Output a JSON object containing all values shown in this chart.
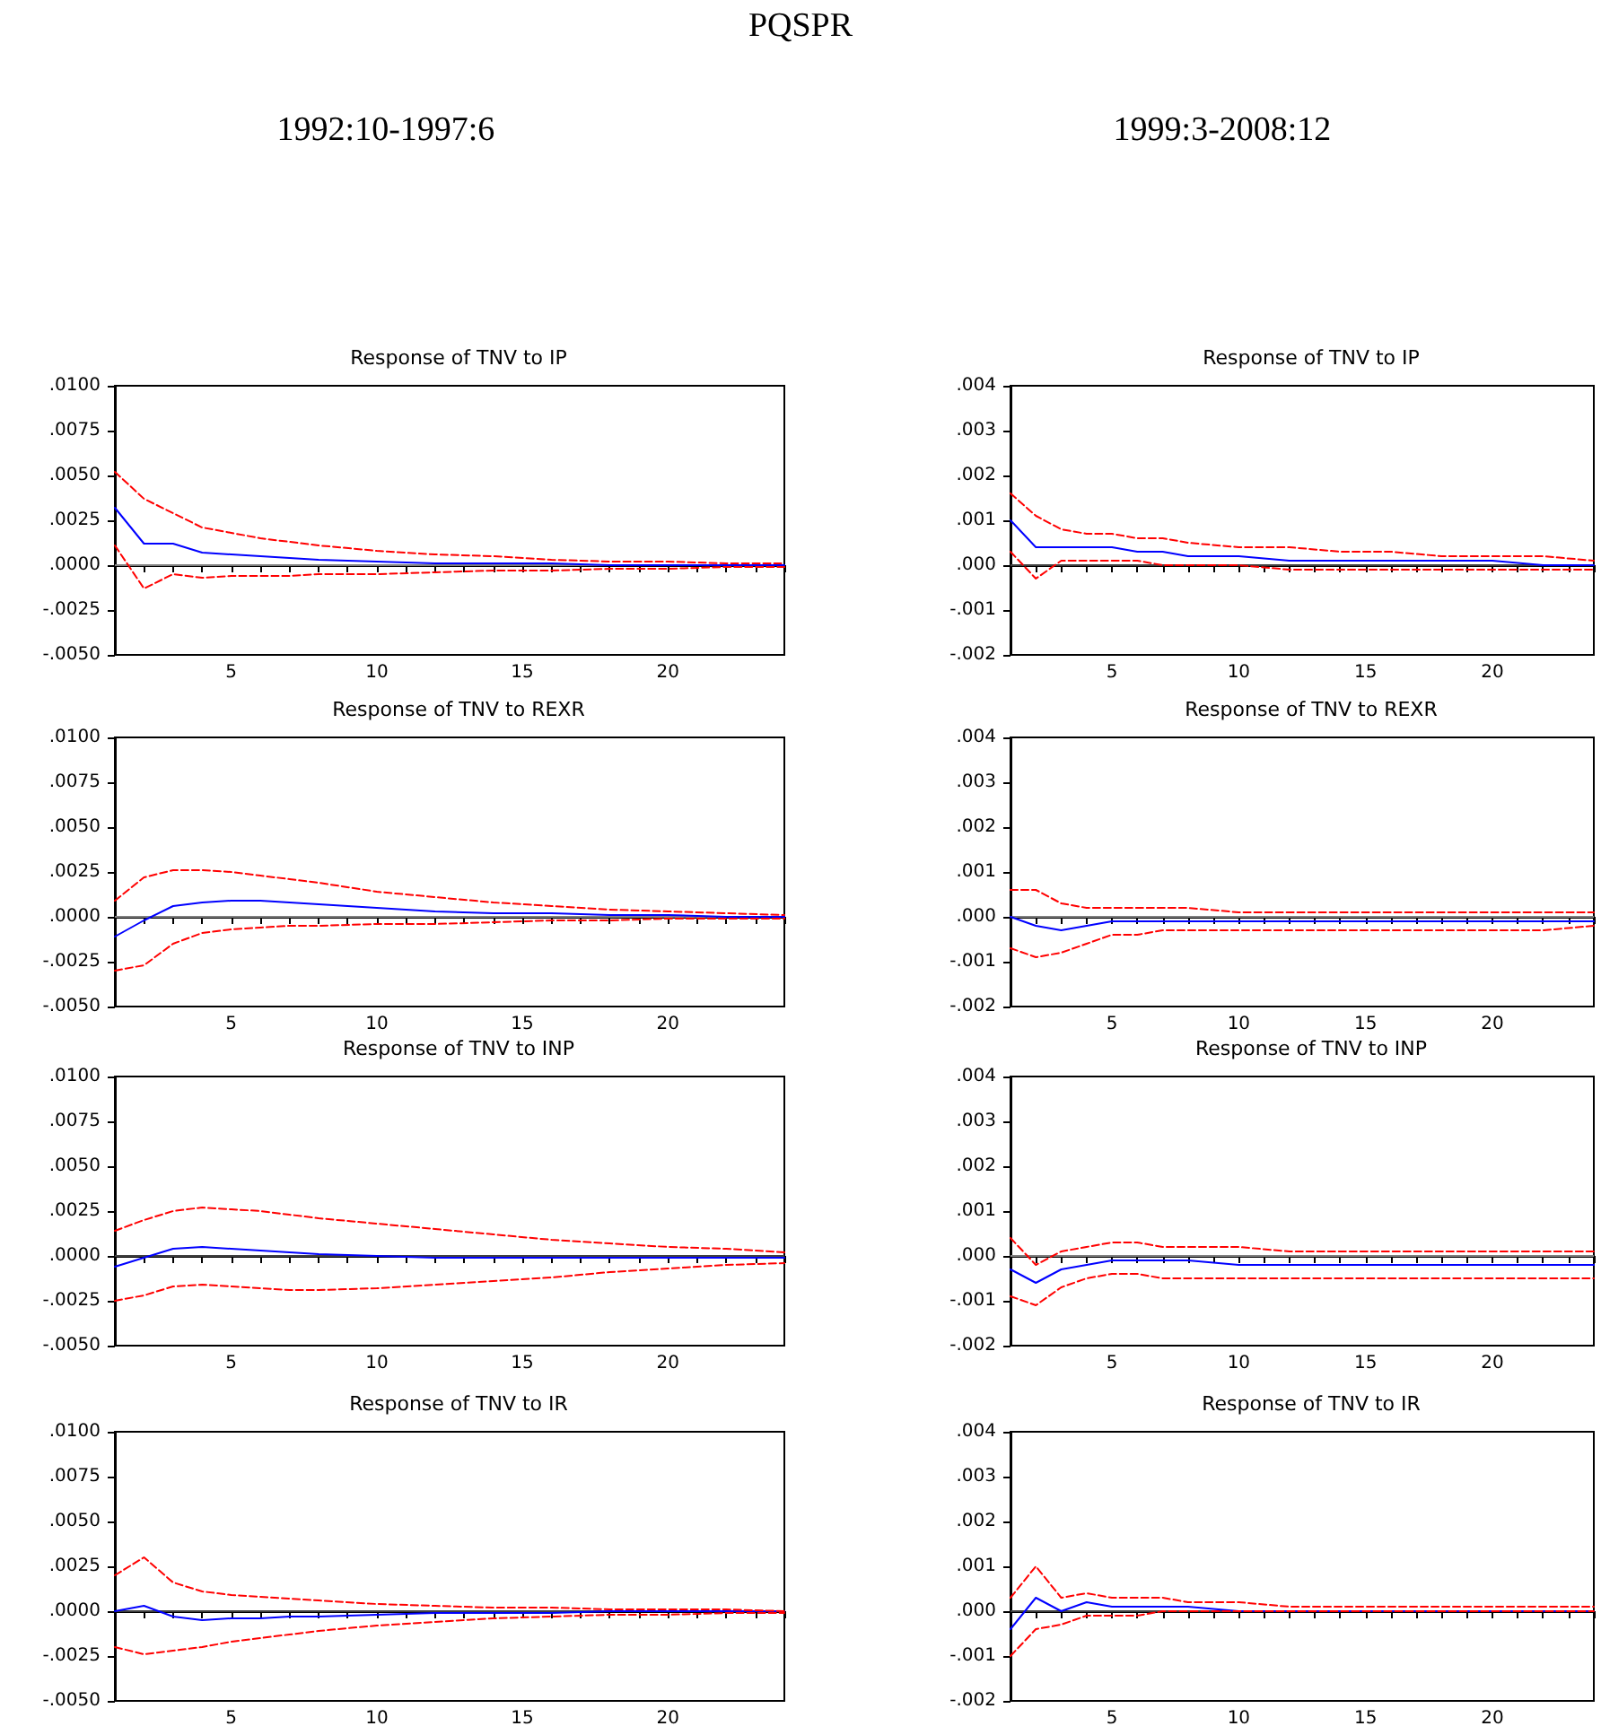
{
  "chart_data": [
    {
      "type": "other",
      "title": "PQSPR",
      "annotations": [
        "1992:10-1997:6",
        "1999:3-2008:12"
      ]
    },
    {
      "type": "line",
      "title": "Response of TNV to IP",
      "x": [
        1,
        2,
        3,
        4,
        5,
        6,
        7,
        8,
        10,
        12,
        14,
        16,
        18,
        20,
        22,
        24
      ],
      "xlim": [
        1,
        24
      ],
      "xticks": [
        {
          "value": 1,
          "label": null
        },
        {
          "value": 2,
          "label": null
        },
        {
          "value": 3,
          "label": null
        },
        {
          "value": 4,
          "label": null
        },
        5,
        {
          "value": 6,
          "label": null
        },
        {
          "value": 7,
          "label": null
        },
        {
          "value": 8,
          "label": null
        },
        {
          "value": 9,
          "label": null
        },
        10,
        {
          "value": 11,
          "label": null
        },
        {
          "value": 12,
          "label": null
        },
        {
          "value": 13,
          "label": null
        },
        {
          "value": 14,
          "label": null
        },
        15,
        {
          "value": 16,
          "label": null
        },
        {
          "value": 17,
          "label": null
        },
        {
          "value": 18,
          "label": null
        },
        {
          "value": 19,
          "label": null
        },
        20,
        {
          "value": 21,
          "label": null
        },
        {
          "value": 22,
          "label": null
        },
        {
          "value": 23,
          "label": null
        },
        {
          "value": 24,
          "label": null
        }
      ],
      "ylim": [
        -0.005,
        0.01
      ],
      "yticks": [
        {
          "value": -0.005,
          "label": "-.0050"
        },
        {
          "value": -0.0025,
          "label": "-.0025"
        },
        {
          "value": 0,
          "label": ".0000"
        },
        {
          "value": 0.0025,
          "label": ".0025"
        },
        {
          "value": 0.005,
          "label": ".0050"
        },
        {
          "value": 0.0075,
          "label": ".0075"
        },
        {
          "value": 0.01,
          "label": ".0100"
        }
      ],
      "grid": false,
      "marker": "none",
      "ref_lines": [
        {
          "axis": "y",
          "value": 0,
          "color": "#808080"
        }
      ],
      "series": [
        {
          "color": "#0000ff",
          "line_style": "solid",
          "values": [
            0.0032,
            0.0012,
            0.0012,
            0.0007,
            0.0006,
            0.0005,
            0.0004,
            0.0003,
            0.0002,
            0.0001,
            0.0001,
            0.0001,
            0,
            0,
            0,
            0
          ]
        },
        {
          "color": "#ff0000",
          "line_style": "dashed",
          "values": [
            0.0052,
            0.0037,
            0.0029,
            0.0021,
            0.0018,
            0.0015,
            0.0013,
            0.0011,
            0.0008,
            0.0006,
            0.0005,
            0.0003,
            0.0002,
            0.0002,
            0.0001,
            0.0001
          ]
        },
        {
          "color": "#ff0000",
          "line_style": "dashed",
          "values": [
            0.0011,
            -0.0013,
            -0.0005,
            -0.0007,
            -0.0006,
            -0.0006,
            -0.0006,
            -0.0005,
            -0.0005,
            -0.0004,
            -0.0003,
            -0.0003,
            -0.0002,
            -0.0002,
            -0.0001,
            -0.0001
          ]
        }
      ]
    },
    {
      "type": "line",
      "title": "Response of TNV to IP",
      "x": [
        1,
        2,
        3,
        4,
        5,
        6,
        7,
        8,
        10,
        12,
        14,
        16,
        18,
        20,
        22,
        24
      ],
      "xlim": [
        1,
        24
      ],
      "xticks": [
        {
          "value": 1,
          "label": null
        },
        {
          "value": 2,
          "label": null
        },
        {
          "value": 3,
          "label": null
        },
        {
          "value": 4,
          "label": null
        },
        5,
        {
          "value": 6,
          "label": null
        },
        {
          "value": 7,
          "label": null
        },
        {
          "value": 8,
          "label": null
        },
        {
          "value": 9,
          "label": null
        },
        10,
        {
          "value": 11,
          "label": null
        },
        {
          "value": 12,
          "label": null
        },
        {
          "value": 13,
          "label": null
        },
        {
          "value": 14,
          "label": null
        },
        15,
        {
          "value": 16,
          "label": null
        },
        {
          "value": 17,
          "label": null
        },
        {
          "value": 18,
          "label": null
        },
        {
          "value": 19,
          "label": null
        },
        20,
        {
          "value": 21,
          "label": null
        },
        {
          "value": 22,
          "label": null
        },
        {
          "value": 23,
          "label": null
        },
        {
          "value": 24,
          "label": null
        }
      ],
      "ylim": [
        -0.002,
        0.004
      ],
      "yticks": [
        {
          "value": -0.002,
          "label": "-.002"
        },
        {
          "value": -0.001,
          "label": "-.001"
        },
        {
          "value": 0,
          "label": ".000"
        },
        {
          "value": 0.001,
          "label": ".001"
        },
        {
          "value": 0.002,
          "label": ".002"
        },
        {
          "value": 0.003,
          "label": ".003"
        },
        {
          "value": 0.004,
          "label": ".004"
        }
      ],
      "grid": false,
      "marker": "none",
      "ref_lines": [
        {
          "axis": "y",
          "value": 0,
          "color": "#404040"
        }
      ],
      "series": [
        {
          "color": "#0000ff",
          "line_style": "solid",
          "values": [
            0.001,
            0.0004,
            0.0004,
            0.0004,
            0.0004,
            0.0003,
            0.0003,
            0.0002,
            0.0002,
            0.0001,
            0.0001,
            0.0001,
            0.0001,
            0.0001,
            0,
            0
          ]
        },
        {
          "color": "#ff0000",
          "line_style": "dashed",
          "values": [
            0.0016,
            0.0011,
            0.0008,
            0.0007,
            0.0007,
            0.0006,
            0.0006,
            0.0005,
            0.0004,
            0.0004,
            0.0003,
            0.0003,
            0.0002,
            0.0002,
            0.0002,
            0.0001
          ]
        },
        {
          "color": "#ff0000",
          "line_style": "dashed",
          "values": [
            0.0003,
            -0.0003,
            0.0001,
            0.0001,
            0.0001,
            0.0001,
            0,
            0,
            0,
            -0.0001,
            -0.0001,
            -0.0001,
            -0.0001,
            -0.0001,
            -0.0001,
            -0.0001
          ]
        }
      ]
    },
    {
      "type": "line",
      "title": "Response of TNV to REXR",
      "x": [
        1,
        2,
        3,
        4,
        5,
        6,
        7,
        8,
        10,
        12,
        14,
        16,
        18,
        20,
        22,
        24
      ],
      "xlim": [
        1,
        24
      ],
      "xticks": [
        {
          "value": 1,
          "label": null
        },
        {
          "value": 2,
          "label": null
        },
        {
          "value": 3,
          "label": null
        },
        {
          "value": 4,
          "label": null
        },
        5,
        {
          "value": 6,
          "label": null
        },
        {
          "value": 7,
          "label": null
        },
        {
          "value": 8,
          "label": null
        },
        {
          "value": 9,
          "label": null
        },
        10,
        {
          "value": 11,
          "label": null
        },
        {
          "value": 12,
          "label": null
        },
        {
          "value": 13,
          "label": null
        },
        {
          "value": 14,
          "label": null
        },
        15,
        {
          "value": 16,
          "label": null
        },
        {
          "value": 17,
          "label": null
        },
        {
          "value": 18,
          "label": null
        },
        {
          "value": 19,
          "label": null
        },
        20,
        {
          "value": 21,
          "label": null
        },
        {
          "value": 22,
          "label": null
        },
        {
          "value": 23,
          "label": null
        },
        {
          "value": 24,
          "label": null
        }
      ],
      "ylim": [
        -0.005,
        0.01
      ],
      "yticks": [
        {
          "value": -0.005,
          "label": "-.0050"
        },
        {
          "value": -0.0025,
          "label": "-.0025"
        },
        {
          "value": 0,
          "label": ".0000"
        },
        {
          "value": 0.0025,
          "label": ".0025"
        },
        {
          "value": 0.005,
          "label": ".0050"
        },
        {
          "value": 0.0075,
          "label": ".0075"
        },
        {
          "value": 0.01,
          "label": ".0100"
        }
      ],
      "grid": false,
      "marker": "none",
      "ref_lines": [
        {
          "axis": "y",
          "value": 0,
          "color": "#808080"
        }
      ],
      "series": [
        {
          "color": "#0000ff",
          "line_style": "solid",
          "values": [
            -0.0011,
            -0.0002,
            0.0006,
            0.0008,
            0.0009,
            0.0009,
            0.0008,
            0.0007,
            0.0005,
            0.0003,
            0.0002,
            0.0002,
            0.0001,
            0.0001,
            0,
            0
          ]
        },
        {
          "color": "#ff0000",
          "line_style": "dashed",
          "values": [
            0.0009,
            0.0022,
            0.0026,
            0.0026,
            0.0025,
            0.0023,
            0.0021,
            0.0019,
            0.0014,
            0.0011,
            0.0008,
            0.0006,
            0.0004,
            0.0003,
            0.0002,
            0.0001
          ]
        },
        {
          "color": "#ff0000",
          "line_style": "dashed",
          "values": [
            -0.003,
            -0.0027,
            -0.0015,
            -0.0009,
            -0.0007,
            -0.0006,
            -0.0005,
            -0.0005,
            -0.0004,
            -0.0004,
            -0.0003,
            -0.0002,
            -0.0002,
            -0.0001,
            -0.0001,
            -0.0001
          ]
        }
      ]
    },
    {
      "type": "line",
      "title": "Response of TNV to REXR",
      "x": [
        1,
        2,
        3,
        4,
        5,
        6,
        7,
        8,
        10,
        12,
        14,
        16,
        18,
        20,
        22,
        24
      ],
      "xlim": [
        1,
        24
      ],
      "xticks": [
        {
          "value": 1,
          "label": null
        },
        {
          "value": 2,
          "label": null
        },
        {
          "value": 3,
          "label": null
        },
        {
          "value": 4,
          "label": null
        },
        5,
        {
          "value": 6,
          "label": null
        },
        {
          "value": 7,
          "label": null
        },
        {
          "value": 8,
          "label": null
        },
        {
          "value": 9,
          "label": null
        },
        10,
        {
          "value": 11,
          "label": null
        },
        {
          "value": 12,
          "label": null
        },
        {
          "value": 13,
          "label": null
        },
        {
          "value": 14,
          "label": null
        },
        15,
        {
          "value": 16,
          "label": null
        },
        {
          "value": 17,
          "label": null
        },
        {
          "value": 18,
          "label": null
        },
        {
          "value": 19,
          "label": null
        },
        20,
        {
          "value": 21,
          "label": null
        },
        {
          "value": 22,
          "label": null
        },
        {
          "value": 23,
          "label": null
        },
        {
          "value": 24,
          "label": null
        }
      ],
      "ylim": [
        -0.002,
        0.004
      ],
      "yticks": [
        {
          "value": -0.002,
          "label": "-.002"
        },
        {
          "value": -0.001,
          "label": "-.001"
        },
        {
          "value": 0,
          "label": ".000"
        },
        {
          "value": 0.001,
          "label": ".001"
        },
        {
          "value": 0.002,
          "label": ".002"
        },
        {
          "value": 0.003,
          "label": ".003"
        },
        {
          "value": 0.004,
          "label": ".004"
        }
      ],
      "grid": false,
      "marker": "none",
      "ref_lines": [
        {
          "axis": "y",
          "value": 0,
          "color": "#808080"
        }
      ],
      "series": [
        {
          "color": "#0000ff",
          "line_style": "solid",
          "values": [
            0,
            -0.0002,
            -0.0003,
            -0.0002,
            -0.0001,
            -0.0001,
            -0.0001,
            -0.0001,
            -0.0001,
            -0.0001,
            -0.0001,
            -0.0001,
            -0.0001,
            -0.0001,
            -0.0001,
            -0.0001
          ]
        },
        {
          "color": "#ff0000",
          "line_style": "dashed",
          "values": [
            0.0006,
            0.0006,
            0.0003,
            0.0002,
            0.0002,
            0.0002,
            0.0002,
            0.0002,
            0.0001,
            0.0001,
            0.0001,
            0.0001,
            0.0001,
            0.0001,
            0.0001,
            0.0001
          ]
        },
        {
          "color": "#ff0000",
          "line_style": "dashed",
          "values": [
            -0.0007,
            -0.0009,
            -0.0008,
            -0.0006,
            -0.0004,
            -0.0004,
            -0.0003,
            -0.0003,
            -0.0003,
            -0.0003,
            -0.0003,
            -0.0003,
            -0.0003,
            -0.0003,
            -0.0003,
            -0.0002
          ]
        }
      ]
    },
    {
      "type": "line",
      "title": "Response of TNV to INP",
      "x": [
        1,
        2,
        3,
        4,
        5,
        6,
        7,
        8,
        10,
        12,
        14,
        16,
        18,
        20,
        22,
        24
      ],
      "xlim": [
        1,
        24
      ],
      "xticks": [
        {
          "value": 1,
          "label": null
        },
        {
          "value": 2,
          "label": null
        },
        {
          "value": 3,
          "label": null
        },
        {
          "value": 4,
          "label": null
        },
        5,
        {
          "value": 6,
          "label": null
        },
        {
          "value": 7,
          "label": null
        },
        {
          "value": 8,
          "label": null
        },
        {
          "value": 9,
          "label": null
        },
        10,
        {
          "value": 11,
          "label": null
        },
        {
          "value": 12,
          "label": null
        },
        {
          "value": 13,
          "label": null
        },
        {
          "value": 14,
          "label": null
        },
        15,
        {
          "value": 16,
          "label": null
        },
        {
          "value": 17,
          "label": null
        },
        {
          "value": 18,
          "label": null
        },
        {
          "value": 19,
          "label": null
        },
        20,
        {
          "value": 21,
          "label": null
        },
        {
          "value": 22,
          "label": null
        },
        {
          "value": 23,
          "label": null
        },
        {
          "value": 24,
          "label": null
        }
      ],
      "ylim": [
        -0.005,
        0.01
      ],
      "yticks": [
        {
          "value": -0.005,
          "label": "-.0050"
        },
        {
          "value": -0.0025,
          "label": "-.0025"
        },
        {
          "value": 0,
          "label": ".0000"
        },
        {
          "value": 0.0025,
          "label": ".0025"
        },
        {
          "value": 0.005,
          "label": ".0050"
        },
        {
          "value": 0.0075,
          "label": ".0075"
        },
        {
          "value": 0.01,
          "label": ".0100"
        }
      ],
      "grid": false,
      "marker": "none",
      "ref_lines": [
        {
          "axis": "y",
          "value": 0,
          "color": "#404040"
        }
      ],
      "series": [
        {
          "color": "#0000ff",
          "line_style": "solid",
          "values": [
            -0.0006,
            -0.0001,
            0.0004,
            0.0005,
            0.0004,
            0.0003,
            0.0002,
            0.0001,
            0,
            -0.0001,
            -0.0001,
            -0.0001,
            -0.0001,
            -0.0001,
            -0.0001,
            -0.0001
          ]
        },
        {
          "color": "#ff0000",
          "line_style": "dashed",
          "values": [
            0.0014,
            0.002,
            0.0025,
            0.0027,
            0.0026,
            0.0025,
            0.0023,
            0.0021,
            0.0018,
            0.0015,
            0.0012,
            0.0009,
            0.0007,
            0.0005,
            0.0004,
            0.0002
          ]
        },
        {
          "color": "#ff0000",
          "line_style": "dashed",
          "values": [
            -0.0025,
            -0.0022,
            -0.0017,
            -0.0016,
            -0.0017,
            -0.0018,
            -0.0019,
            -0.0019,
            -0.0018,
            -0.0016,
            -0.0014,
            -0.0012,
            -0.0009,
            -0.0007,
            -0.0005,
            -0.0004
          ]
        }
      ]
    },
    {
      "type": "line",
      "title": "Response of TNV to INP",
      "x": [
        1,
        2,
        3,
        4,
        5,
        6,
        7,
        8,
        10,
        12,
        14,
        16,
        18,
        20,
        22,
        24
      ],
      "xlim": [
        1,
        24
      ],
      "xticks": [
        {
          "value": 1,
          "label": null
        },
        {
          "value": 2,
          "label": null
        },
        {
          "value": 3,
          "label": null
        },
        {
          "value": 4,
          "label": null
        },
        5,
        {
          "value": 6,
          "label": null
        },
        {
          "value": 7,
          "label": null
        },
        {
          "value": 8,
          "label": null
        },
        {
          "value": 9,
          "label": null
        },
        10,
        {
          "value": 11,
          "label": null
        },
        {
          "value": 12,
          "label": null
        },
        {
          "value": 13,
          "label": null
        },
        {
          "value": 14,
          "label": null
        },
        15,
        {
          "value": 16,
          "label": null
        },
        {
          "value": 17,
          "label": null
        },
        {
          "value": 18,
          "label": null
        },
        {
          "value": 19,
          "label": null
        },
        20,
        {
          "value": 21,
          "label": null
        },
        {
          "value": 22,
          "label": null
        },
        {
          "value": 23,
          "label": null
        },
        {
          "value": 24,
          "label": null
        }
      ],
      "ylim": [
        -0.002,
        0.004
      ],
      "yticks": [
        {
          "value": -0.002,
          "label": "-.002"
        },
        {
          "value": -0.001,
          "label": "-.001"
        },
        {
          "value": 0,
          "label": ".000"
        },
        {
          "value": 0.001,
          "label": ".001"
        },
        {
          "value": 0.002,
          "label": ".002"
        },
        {
          "value": 0.003,
          "label": ".003"
        },
        {
          "value": 0.004,
          "label": ".004"
        }
      ],
      "grid": false,
      "marker": "none",
      "ref_lines": [
        {
          "axis": "y",
          "value": 0,
          "color": "#808080"
        }
      ],
      "series": [
        {
          "color": "#0000ff",
          "line_style": "solid",
          "values": [
            -0.0003,
            -0.0006,
            -0.0003,
            -0.0002,
            -0.0001,
            -0.0001,
            -0.0001,
            -0.0001,
            -0.0002,
            -0.0002,
            -0.0002,
            -0.0002,
            -0.0002,
            -0.0002,
            -0.0002,
            -0.0002
          ]
        },
        {
          "color": "#ff0000",
          "line_style": "dashed",
          "values": [
            0.0004,
            -0.0002,
            0.0001,
            0.0002,
            0.0003,
            0.0003,
            0.0002,
            0.0002,
            0.0002,
            0.0001,
            0.0001,
            0.0001,
            0.0001,
            0.0001,
            0.0001,
            0.0001
          ]
        },
        {
          "color": "#ff0000",
          "line_style": "dashed",
          "values": [
            -0.0009,
            -0.0011,
            -0.0007,
            -0.0005,
            -0.0004,
            -0.0004,
            -0.0005,
            -0.0005,
            -0.0005,
            -0.0005,
            -0.0005,
            -0.0005,
            -0.0005,
            -0.0005,
            -0.0005,
            -0.0005
          ]
        }
      ]
    },
    {
      "type": "line",
      "title": "Response of TNV to IR",
      "x": [
        1,
        2,
        3,
        4,
        5,
        6,
        7,
        8,
        10,
        12,
        14,
        16,
        18,
        20,
        22,
        24
      ],
      "xlim": [
        1,
        24
      ],
      "xticks": [
        {
          "value": 1,
          "label": null
        },
        {
          "value": 2,
          "label": null
        },
        {
          "value": 3,
          "label": null
        },
        {
          "value": 4,
          "label": null
        },
        5,
        {
          "value": 6,
          "label": null
        },
        {
          "value": 7,
          "label": null
        },
        {
          "value": 8,
          "label": null
        },
        {
          "value": 9,
          "label": null
        },
        10,
        {
          "value": 11,
          "label": null
        },
        {
          "value": 12,
          "label": null
        },
        {
          "value": 13,
          "label": null
        },
        {
          "value": 14,
          "label": null
        },
        15,
        {
          "value": 16,
          "label": null
        },
        {
          "value": 17,
          "label": null
        },
        {
          "value": 18,
          "label": null
        },
        {
          "value": 19,
          "label": null
        },
        20,
        {
          "value": 21,
          "label": null
        },
        {
          "value": 22,
          "label": null
        },
        {
          "value": 23,
          "label": null
        },
        {
          "value": 24,
          "label": null
        }
      ],
      "ylim": [
        -0.005,
        0.01
      ],
      "yticks": [
        {
          "value": -0.005,
          "label": "-.0050"
        },
        {
          "value": -0.0025,
          "label": "-.0025"
        },
        {
          "value": 0,
          "label": ".0000"
        },
        {
          "value": 0.0025,
          "label": ".0025"
        },
        {
          "value": 0.005,
          "label": ".0050"
        },
        {
          "value": 0.0075,
          "label": ".0075"
        },
        {
          "value": 0.01,
          "label": ".0100"
        }
      ],
      "grid": false,
      "marker": "none",
      "ref_lines": [
        {
          "axis": "y",
          "value": 0,
          "color": "#404040"
        }
      ],
      "series": [
        {
          "color": "#0000ff",
          "line_style": "solid",
          "values": [
            0,
            0.0003,
            -0.0003,
            -0.0005,
            -0.0004,
            -0.0004,
            -0.0003,
            -0.0003,
            -0.0002,
            -0.0001,
            -0.0001,
            -0.0001,
            0,
            0,
            0,
            0
          ]
        },
        {
          "color": "#ff0000",
          "line_style": "dashed",
          "values": [
            0.002,
            0.003,
            0.0016,
            0.0011,
            0.0009,
            0.0008,
            0.0007,
            0.0006,
            0.0004,
            0.0003,
            0.0002,
            0.0002,
            0.0001,
            0.0001,
            0.0001,
            0
          ]
        },
        {
          "color": "#ff0000",
          "line_style": "dashed",
          "values": [
            -0.002,
            -0.0024,
            -0.0022,
            -0.002,
            -0.0017,
            -0.0015,
            -0.0013,
            -0.0011,
            -0.0008,
            -0.0006,
            -0.0004,
            -0.0003,
            -0.0002,
            -0.0002,
            -0.0001,
            -0.0001
          ]
        }
      ]
    },
    {
      "type": "line",
      "title": "Response of TNV to IR",
      "x": [
        1,
        2,
        3,
        4,
        5,
        6,
        7,
        8,
        10,
        12,
        14,
        16,
        18,
        20,
        22,
        24
      ],
      "xlim": [
        1,
        24
      ],
      "xticks": [
        {
          "value": 1,
          "label": null
        },
        {
          "value": 2,
          "label": null
        },
        {
          "value": 3,
          "label": null
        },
        {
          "value": 4,
          "label": null
        },
        5,
        {
          "value": 6,
          "label": null
        },
        {
          "value": 7,
          "label": null
        },
        {
          "value": 8,
          "label": null
        },
        {
          "value": 9,
          "label": null
        },
        10,
        {
          "value": 11,
          "label": null
        },
        {
          "value": 12,
          "label": null
        },
        {
          "value": 13,
          "label": null
        },
        {
          "value": 14,
          "label": null
        },
        15,
        {
          "value": 16,
          "label": null
        },
        {
          "value": 17,
          "label": null
        },
        {
          "value": 18,
          "label": null
        },
        {
          "value": 19,
          "label": null
        },
        20,
        {
          "value": 21,
          "label": null
        },
        {
          "value": 22,
          "label": null
        },
        {
          "value": 23,
          "label": null
        },
        {
          "value": 24,
          "label": null
        }
      ],
      "ylim": [
        -0.002,
        0.004
      ],
      "yticks": [
        {
          "value": -0.002,
          "label": "-.002"
        },
        {
          "value": -0.001,
          "label": "-.001"
        },
        {
          "value": 0,
          "label": ".000"
        },
        {
          "value": 0.001,
          "label": ".001"
        },
        {
          "value": 0.002,
          "label": ".002"
        },
        {
          "value": 0.003,
          "label": ".003"
        },
        {
          "value": 0.004,
          "label": ".004"
        }
      ],
      "grid": false,
      "marker": "none",
      "ref_lines": [
        {
          "axis": "y",
          "value": 0,
          "color": "#404040"
        }
      ],
      "series": [
        {
          "color": "#0000ff",
          "line_style": "solid",
          "values": [
            -0.0004,
            0.0003,
            0,
            0.0002,
            0.0001,
            0.0001,
            0.0001,
            0.0001,
            0,
            0,
            0,
            0,
            0,
            0,
            0,
            0
          ]
        },
        {
          "color": "#ff0000",
          "line_style": "dashed",
          "values": [
            0.0003,
            0.001,
            0.0003,
            0.0004,
            0.0003,
            0.0003,
            0.0003,
            0.0002,
            0.0002,
            0.0001,
            0.0001,
            0.0001,
            0.0001,
            0.0001,
            0.0001,
            0.0001
          ]
        },
        {
          "color": "#ff0000",
          "line_style": "dashed",
          "values": [
            -0.001,
            -0.0004,
            -0.0003,
            -0.0001,
            -0.0001,
            -0.0001,
            0,
            0,
            0,
            0,
            0,
            0,
            0,
            0,
            0,
            0
          ]
        }
      ]
    }
  ]
}
